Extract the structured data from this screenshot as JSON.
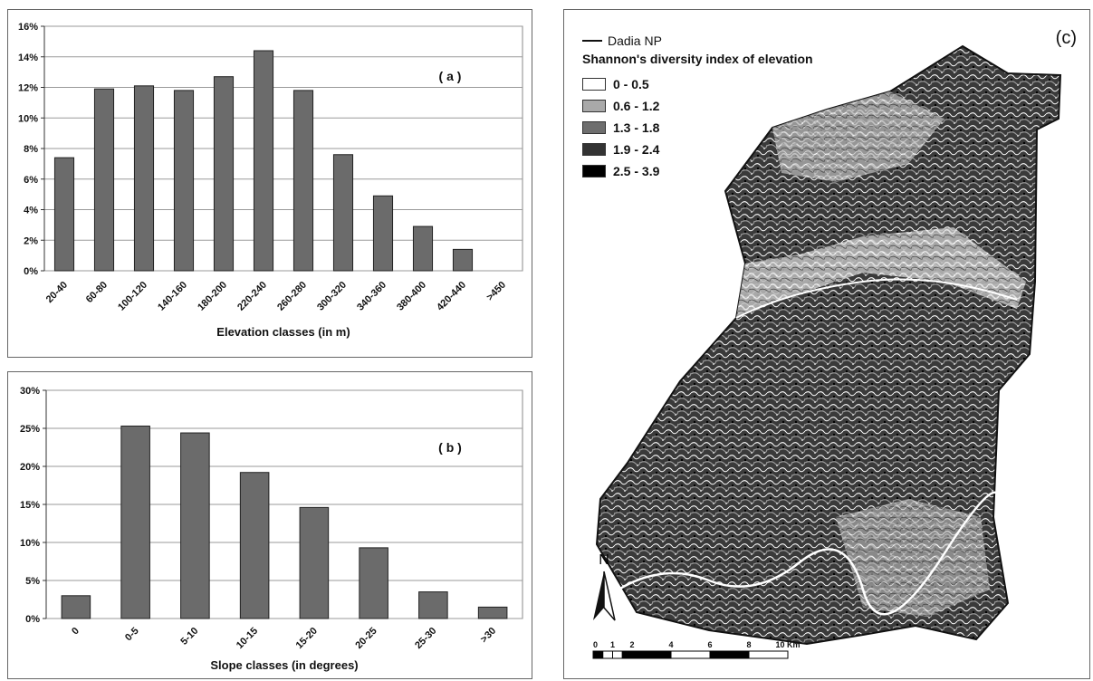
{
  "chart_data": [
    {
      "type": "bar",
      "panel_label": "( a )",
      "xlabel": "Elevation classes (in m)",
      "ylabel": "",
      "categories": [
        "20-40",
        "60-80",
        "100-120",
        "140-160",
        "180-200",
        "220-240",
        "260-280",
        "300-320",
        "340-360",
        "380-400",
        "420-440",
        ">450"
      ],
      "values": [
        7.4,
        11.9,
        12.1,
        11.8,
        12.7,
        14.4,
        11.8,
        7.6,
        4.9,
        2.9,
        1.4,
        0.0
      ],
      "ylim": [
        0,
        16
      ],
      "yticks": [
        0,
        2,
        4,
        6,
        8,
        10,
        12,
        14,
        16
      ],
      "ytick_labels": [
        "0%",
        "2%",
        "4%",
        "6%",
        "8%",
        "10%",
        "12%",
        "14%",
        "16%"
      ],
      "grid": true,
      "bar_color": "#6b6b6b"
    },
    {
      "type": "bar",
      "panel_label": "( b )",
      "xlabel": "Slope classes (in degrees)",
      "ylabel": "",
      "categories": [
        "0",
        "0-5",
        "5-10",
        "10-15",
        "15-20",
        "20-25",
        "25-30",
        ">30"
      ],
      "values": [
        3.0,
        25.3,
        24.4,
        19.2,
        14.6,
        9.3,
        3.5,
        1.5
      ],
      "ylim": [
        0,
        30
      ],
      "yticks": [
        0,
        5,
        10,
        15,
        20,
        25,
        30
      ],
      "ytick_labels": [
        "0%",
        "5%",
        "10%",
        "15%",
        "20%",
        "25%",
        "30%"
      ],
      "grid": true,
      "bar_color": "#6b6b6b"
    }
  ],
  "map": {
    "panel_label": "(c)",
    "boundary_label": "Dadia NP",
    "legend_title": "Shannon's diversity index of elevation",
    "classes": [
      {
        "label": "0 - 0.5",
        "color": "#ffffff"
      },
      {
        "label": "0.6 - 1.2",
        "color": "#a9a9a9"
      },
      {
        "label": "1.3 - 1.8",
        "color": "#6e6e6e"
      },
      {
        "label": "1.9 - 2.4",
        "color": "#333333"
      },
      {
        "label": "2.5 - 3.9",
        "color": "#000000"
      }
    ],
    "north_label": "N",
    "scale_labels": [
      "0",
      "1",
      "2",
      "4",
      "6",
      "8",
      "10 Km"
    ],
    "scale_values": [
      0,
      1,
      2,
      4,
      6,
      8,
      10
    ]
  }
}
